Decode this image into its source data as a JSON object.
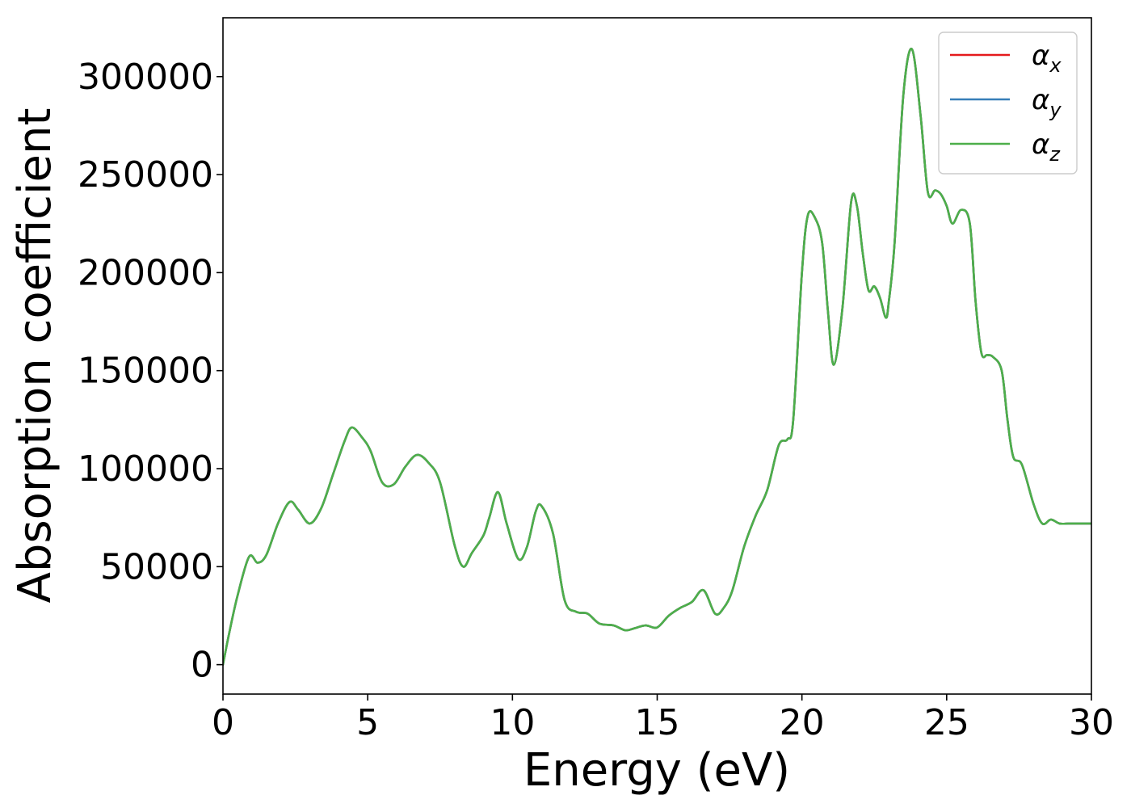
{
  "chart_data": {
    "type": "line",
    "title": "",
    "xlabel": "Energy (eV)",
    "ylabel": "Absorption coefficient",
    "xlim": [
      0,
      30
    ],
    "ylim": [
      -15000,
      330000
    ],
    "xticks": [
      "0",
      "5",
      "10",
      "15",
      "20",
      "25",
      "30"
    ],
    "yticks": [
      "0",
      "50000",
      "100000",
      "150000",
      "200000",
      "250000",
      "300000"
    ],
    "grid": false,
    "legend_position": "top-right",
    "colors": {
      "alpha_x": "#e41a1c",
      "alpha_y": "#377eb8",
      "alpha_z": "#4daf4a"
    },
    "x": [
      0,
      0.2,
      0.5,
      0.9,
      1.2,
      1.5,
      1.9,
      2.3,
      2.6,
      3.0,
      3.4,
      3.8,
      4.2,
      4.45,
      4.8,
      5.1,
      5.5,
      5.9,
      6.3,
      6.7,
      7.1,
      7.5,
      8.0,
      8.3,
      8.6,
      9.0,
      9.2,
      9.5,
      9.8,
      10.2,
      10.5,
      10.8,
      11.0,
      11.4,
      11.8,
      12.2,
      12.6,
      13.0,
      13.5,
      13.9,
      14.2,
      14.6,
      15.0,
      15.4,
      15.8,
      16.2,
      16.6,
      17.0,
      17.3,
      17.6,
      18.0,
      18.4,
      18.8,
      19.2,
      19.5,
      19.7,
      20.0,
      20.2,
      20.45,
      20.7,
      20.9,
      21.1,
      21.4,
      21.7,
      21.9,
      22.1,
      22.3,
      22.5,
      22.7,
      22.9,
      23.0,
      23.2,
      23.5,
      23.8,
      24.1,
      24.35,
      24.6,
      24.8,
      25.0,
      25.2,
      25.5,
      25.8,
      26.0,
      26.2,
      26.4,
      26.6,
      26.9,
      27.1,
      27.3,
      27.6,
      28.0,
      28.3,
      28.6,
      28.9,
      29.2,
      29.5,
      29.8,
      30.0
    ],
    "series": [
      {
        "name": "αx",
        "values": [
          0,
          15000,
          35000,
          55000,
          52000,
          56000,
          72000,
          83000,
          79000,
          72000,
          80000,
          97000,
          114000,
          121000,
          116000,
          109000,
          93000,
          92000,
          101000,
          107000,
          103000,
          93000,
          61000,
          50000,
          57000,
          66000,
          75000,
          88000,
          72000,
          54000,
          60000,
          78000,
          81000,
          67000,
          33000,
          27000,
          26000,
          21000,
          20000,
          17500,
          18500,
          20000,
          19000,
          25000,
          29000,
          32000,
          38000,
          26000,
          29000,
          38000,
          60000,
          76000,
          89000,
          112000,
          115000,
          125000,
          200000,
          229000,
          228000,
          215000,
          180000,
          153000,
          182000,
          236000,
          234000,
          210000,
          191000,
          193000,
          187000,
          177000,
          185000,
          215000,
          290000,
          314000,
          280000,
          241000,
          242000,
          240000,
          234000,
          225000,
          232000,
          225000,
          185000,
          159000,
          158000,
          157000,
          150000,
          125000,
          106000,
          102000,
          82000,
          72000,
          74000,
          72000,
          72000,
          72000,
          72000,
          72000
        ]
      },
      {
        "name": "αy",
        "values": [
          0,
          15000,
          35000,
          55000,
          52000,
          56000,
          72000,
          83000,
          79000,
          72000,
          80000,
          97000,
          114000,
          121000,
          116000,
          109000,
          93000,
          92000,
          101000,
          107000,
          103000,
          93000,
          61000,
          50000,
          57000,
          66000,
          75000,
          88000,
          72000,
          54000,
          60000,
          78000,
          81000,
          67000,
          33000,
          27000,
          26000,
          21000,
          20000,
          17500,
          18500,
          20000,
          19000,
          25000,
          29000,
          32000,
          38000,
          26000,
          29000,
          38000,
          60000,
          76000,
          89000,
          112000,
          115000,
          125000,
          200000,
          229000,
          228000,
          215000,
          180000,
          153000,
          182000,
          236000,
          234000,
          210000,
          191000,
          193000,
          187000,
          177000,
          185000,
          215000,
          290000,
          314000,
          280000,
          241000,
          242000,
          240000,
          234000,
          225000,
          232000,
          225000,
          185000,
          159000,
          158000,
          157000,
          150000,
          125000,
          106000,
          102000,
          82000,
          72000,
          74000,
          72000,
          72000,
          72000,
          72000,
          72000
        ]
      },
      {
        "name": "αz",
        "values": [
          0,
          15000,
          35000,
          55000,
          52000,
          56000,
          72000,
          83000,
          79000,
          72000,
          80000,
          97000,
          114000,
          121000,
          116000,
          109000,
          93000,
          92000,
          101000,
          107000,
          103000,
          93000,
          61000,
          50000,
          57000,
          66000,
          75000,
          88000,
          72000,
          54000,
          60000,
          78000,
          81000,
          67000,
          33000,
          27000,
          26000,
          21000,
          20000,
          17500,
          18500,
          20000,
          19000,
          25000,
          29000,
          32000,
          38000,
          26000,
          29000,
          38000,
          60000,
          76000,
          89000,
          112000,
          115000,
          125000,
          200000,
          229000,
          228000,
          215000,
          180000,
          153000,
          182000,
          236000,
          234000,
          210000,
          191000,
          193000,
          187000,
          177000,
          185000,
          215000,
          290000,
          314000,
          280000,
          241000,
          242000,
          240000,
          234000,
          225000,
          232000,
          225000,
          185000,
          159000,
          158000,
          157000,
          150000,
          125000,
          106000,
          102000,
          82000,
          72000,
          74000,
          72000,
          72000,
          72000,
          72000,
          72000
        ]
      }
    ],
    "legend": [
      {
        "base": "α",
        "sub": "x"
      },
      {
        "base": "α",
        "sub": "y"
      },
      {
        "base": "α",
        "sub": "z"
      }
    ]
  }
}
